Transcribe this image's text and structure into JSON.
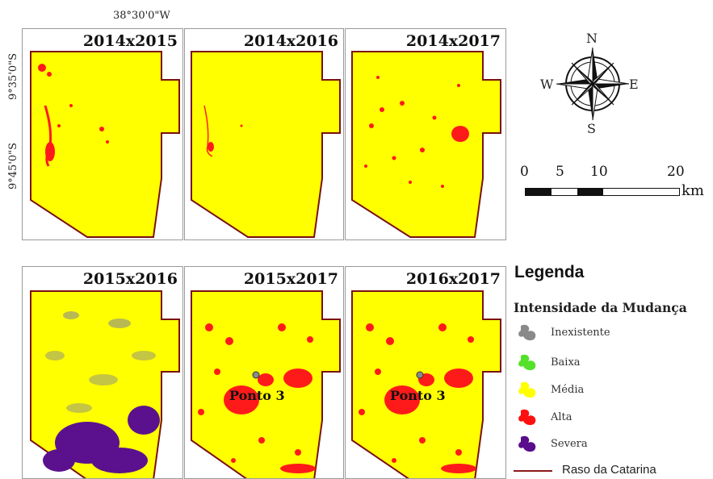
{
  "coordinates": {
    "top_lon": "38°30'0\"W",
    "lat_1": "9°35'0\"S",
    "lat_2": "9°45'0\"S"
  },
  "panels": [
    {
      "title": "2014x2015"
    },
    {
      "title": "2014x2016"
    },
    {
      "title": "2014x2017"
    },
    {
      "title": "2015x2016"
    },
    {
      "title": "2015x2017",
      "point_label": "Ponto 3"
    },
    {
      "title": "2016x2017",
      "point_label": "Ponto 3"
    }
  ],
  "compass": {
    "n": "N",
    "s": "S",
    "e": "E",
    "w": "W"
  },
  "scale": {
    "ticks": [
      "0",
      "5",
      "10",
      "20"
    ],
    "unit": "km"
  },
  "legend": {
    "title": "Legenda",
    "subtitle": "Intensidade da Mudança",
    "items": [
      {
        "label": "Inexistente",
        "color": "#8a8a8a"
      },
      {
        "label": "Baixa",
        "color": "#55e02a"
      },
      {
        "label": "Média",
        "color": "#ffff00"
      },
      {
        "label": "Alta",
        "color": "#ff1010"
      },
      {
        "label": "Severa",
        "color": "#5a0d8c"
      }
    ],
    "boundary_label": "Raso da Catarina",
    "boundary_color": "#8b1a1a"
  },
  "colors": {
    "yellow": "#ffff00",
    "red": "#ff1a1a",
    "purple": "#5b118e",
    "boundary": "#7a1111"
  }
}
